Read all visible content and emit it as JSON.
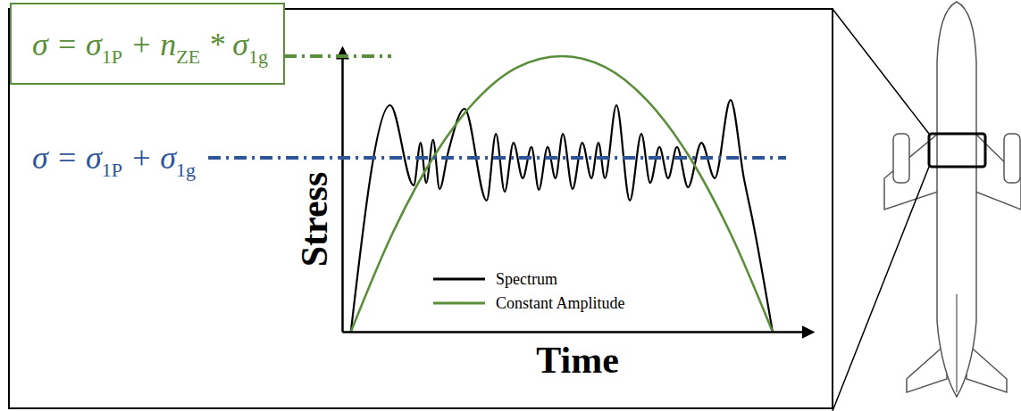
{
  "chart_data": {
    "type": "line",
    "x_label": "Time",
    "y_label": "Stress",
    "xlim": [
      0,
      10
    ],
    "ylim": [
      0,
      10
    ],
    "tick_labels": false,
    "legend": "bottom",
    "series": [
      {
        "name": "Spectrum",
        "color": "#000000",
        "x": [
          0.19,
          1.04,
          1.55,
          1.7,
          1.82,
          1.97,
          2.11,
          2.3,
          2.65,
          3.13,
          3.33,
          3.52,
          3.71,
          3.91,
          4.1,
          4.26,
          4.45,
          4.62,
          4.78,
          4.99,
          5.2,
          5.4,
          5.55,
          5.69,
          5.94,
          6.23,
          6.48,
          6.67,
          6.87,
          7.06,
          7.25,
          7.49,
          7.78,
          8.07,
          8.41,
          8.7,
          8.9,
          9.32
        ],
        "values": [
          0,
          8.22,
          5.31,
          6.86,
          5.4,
          6.96,
          5.18,
          6.54,
          8.09,
          4.76,
          7.18,
          5.08,
          6.86,
          5.57,
          6.7,
          5.15,
          6.7,
          5.57,
          7.18,
          5.18,
          6.86,
          5.57,
          6.86,
          5.57,
          8.22,
          4.76,
          7.18,
          5.4,
          6.7,
          5.57,
          6.7,
          5.24,
          6.86,
          5.57,
          8.41,
          5.57,
          3.95,
          0
        ]
      },
      {
        "name": "Constant Amplitude",
        "color": "#5b8e3a",
        "x": [
          0.19,
          1.1,
          2.0,
          2.9,
          3.8,
          4.76,
          5.7,
          6.6,
          7.5,
          8.4,
          9.32
        ],
        "values": [
          0,
          3.6,
          6.4,
          8.4,
          9.6,
          10,
          9.6,
          8.4,
          6.4,
          3.6,
          0
        ]
      }
    ],
    "annotations": [
      {
        "parts": [
          {
            "t": "σ =  σ"
          },
          {
            "t": "1P",
            "sub": true
          },
          {
            "t": " + n"
          },
          {
            "t": "ZE",
            "sub": true
          },
          {
            "t": " * σ"
          },
          {
            "t": "1g",
            "sub": true
          }
        ],
        "y": 10,
        "color": "#5b8e3a",
        "line_style": "dash-dot"
      },
      {
        "parts": [
          {
            "t": "σ =  σ"
          },
          {
            "t": "1P",
            "sub": true
          },
          {
            "t": " + σ"
          },
          {
            "t": "1g",
            "sub": true
          }
        ],
        "y": 6.31,
        "color": "#2e5597",
        "line_style": "dash-dot"
      }
    ]
  }
}
